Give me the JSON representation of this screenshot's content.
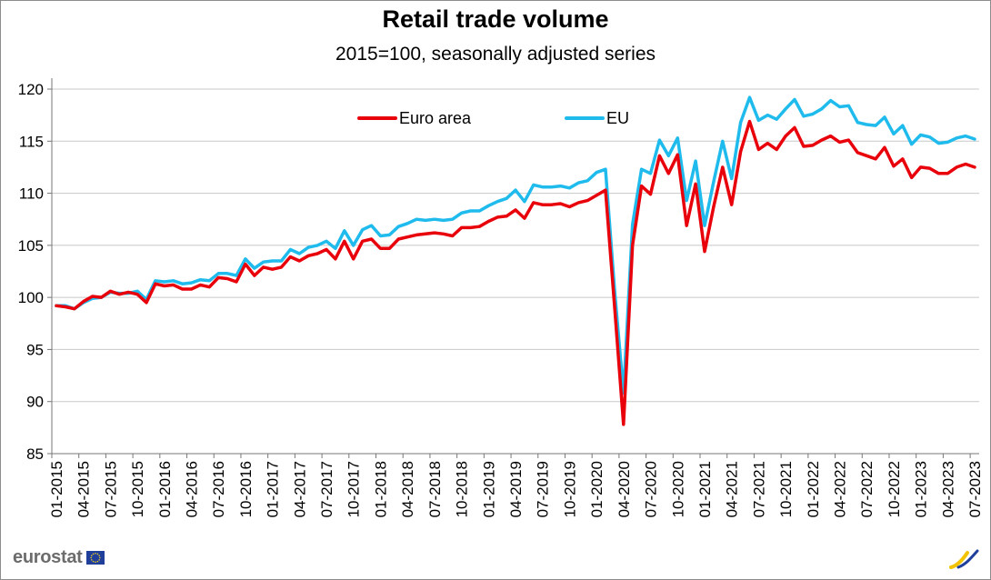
{
  "chart_data": {
    "type": "line",
    "title": "Retail trade volume",
    "subtitle": "2015=100, seasonally adjusted series",
    "ylim": [
      85,
      120
    ],
    "yticks": [
      "85",
      "90",
      "95",
      "100",
      "105",
      "110",
      "115",
      "120"
    ],
    "grid": true,
    "legend_position": "top-left",
    "x_tick_labels": [
      "01-2015",
      "04-2015",
      "07-2015",
      "10-2015",
      "01-2016",
      "04-2016",
      "07-2016",
      "10-2016",
      "01-2017",
      "04-2017",
      "07-2017",
      "10-2017",
      "01-2018",
      "04-2018",
      "07-2018",
      "10-2018",
      "01-2019",
      "04-2019",
      "07-2019",
      "10-2019",
      "01-2020",
      "04-2020",
      "07-2020",
      "10-2020",
      "01-2021",
      "04-2021",
      "07-2021",
      "10-2021",
      "01-2022",
      "04-2022",
      "07-2022",
      "10-2022",
      "01-2023",
      "04-2023",
      "07-2023"
    ],
    "series": [
      {
        "name": "Euro area",
        "color": "#e8000b",
        "values": [
          99.2,
          99.1,
          98.9,
          99.6,
          100.1,
          100.0,
          100.6,
          100.3,
          100.5,
          100.3,
          99.5,
          101.3,
          101.1,
          101.2,
          100.8,
          100.8,
          101.2,
          101.0,
          101.9,
          101.8,
          101.5,
          103.2,
          102.1,
          102.9,
          102.7,
          102.9,
          103.9,
          103.5,
          104.0,
          104.2,
          104.6,
          103.7,
          105.4,
          103.7,
          105.4,
          105.6,
          104.7,
          104.7,
          105.6,
          105.8,
          106.0,
          106.1,
          106.2,
          106.1,
          105.9,
          106.7,
          106.7,
          106.8,
          107.3,
          107.7,
          107.8,
          108.4,
          107.6,
          109.1,
          108.9,
          108.9,
          109.0,
          108.7,
          109.1,
          109.3,
          109.8,
          110.3,
          99.2,
          87.8,
          105.0,
          110.7,
          109.9,
          113.6,
          111.9,
          113.7,
          106.9,
          110.9,
          104.4,
          108.7,
          112.5,
          108.9,
          114.0,
          116.9,
          114.2,
          114.8,
          114.2,
          115.5,
          116.3,
          114.5,
          114.6,
          115.1,
          115.5,
          114.9,
          115.1,
          113.9,
          113.6,
          113.3,
          114.4,
          112.6,
          113.3,
          111.5,
          112.5,
          112.4,
          111.9,
          111.9,
          112.5,
          112.8,
          112.5
        ]
      },
      {
        "name": "EU",
        "color": "#1fbbed",
        "values": [
          99.2,
          99.2,
          98.9,
          99.5,
          99.9,
          100.0,
          100.5,
          100.4,
          100.4,
          100.6,
          99.8,
          101.6,
          101.5,
          101.6,
          101.3,
          101.4,
          101.7,
          101.6,
          102.3,
          102.3,
          102.1,
          103.7,
          102.8,
          103.4,
          103.5,
          103.5,
          104.6,
          104.2,
          104.8,
          105.0,
          105.4,
          104.7,
          106.4,
          105.0,
          106.5,
          106.9,
          105.9,
          106.0,
          106.8,
          107.1,
          107.5,
          107.4,
          107.5,
          107.4,
          107.5,
          108.1,
          108.3,
          108.3,
          108.8,
          109.2,
          109.5,
          110.3,
          109.2,
          110.8,
          110.6,
          110.6,
          110.7,
          110.5,
          111.0,
          111.2,
          112.0,
          112.3,
          100.8,
          90.8,
          107.0,
          112.3,
          111.9,
          115.1,
          113.6,
          115.3,
          109.3,
          113.1,
          106.9,
          111.1,
          115.0,
          111.4,
          116.8,
          119.2,
          117.0,
          117.5,
          117.1,
          118.1,
          119.0,
          117.4,
          117.6,
          118.1,
          118.9,
          118.3,
          118.4,
          116.8,
          116.6,
          116.5,
          117.3,
          115.7,
          116.5,
          114.7,
          115.6,
          115.4,
          114.8,
          114.9,
          115.3,
          115.5,
          115.2
        ]
      }
    ]
  },
  "branding": {
    "logo_text": "eurostat"
  }
}
